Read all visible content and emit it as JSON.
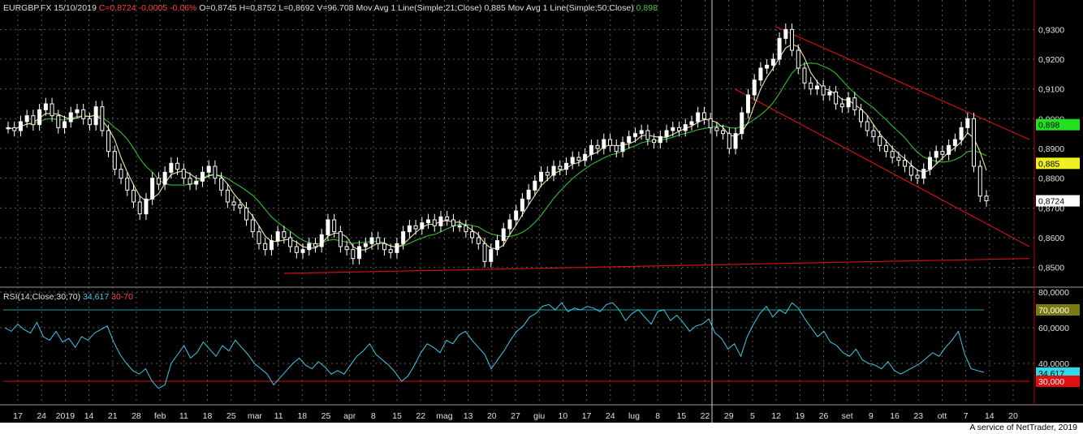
{
  "header": {
    "symbol_line": "EURGBP.FX 15/10/2019",
    "c": "C=0,8724",
    "chg": "-0,0005",
    "pct": "-0,06%",
    "ohlcv": "O=0,8745 H=0,8752 L=0,8692 V=96.708",
    "ma21_label": "Mov Avg 1 Line(Simple;21;Close) 0,885",
    "ma50_label": "Mov Avg 1 Line(Simple;50;Close)",
    "ma50_value": "0,898"
  },
  "rsi_header": {
    "label": "RSI(14;Close;30;70)",
    "value": "34,617",
    "bands": "30-70"
  },
  "credit": "A service of NetTrader, 2019",
  "colors": {
    "background": "#000000",
    "grid": "#5a5a5a",
    "candle": "#ffffff",
    "ma21": "#e8e8a0",
    "ma50": "#2fbf2f",
    "trend": "#d01010",
    "rsi": "#40c8e8",
    "rsi70": "#20a0a0",
    "rsi30": "#d01010"
  },
  "chart_data": [
    {
      "type": "candlestick",
      "title": "EURGBP.FX",
      "ylim": [
        0.845,
        0.935
      ],
      "y_ticks": [
        "0,8500",
        "0,8600",
        "0,8700",
        "0,8800",
        "0,8900",
        "0,9000",
        "0,9100",
        "0,9200",
        "0,9300"
      ],
      "x_ticks": [
        "17",
        "24",
        "2019",
        "14",
        "21",
        "28",
        "feb",
        "11",
        "18",
        "25",
        "mar",
        "11",
        "18",
        "25",
        "apr",
        "8",
        "15",
        "22",
        "mag",
        "13",
        "20",
        "27",
        "giu",
        "10",
        "17",
        "24",
        "lug",
        "8",
        "15",
        "22",
        "29",
        "5",
        "12",
        "19",
        "26",
        "set",
        "9",
        "16",
        "23",
        "ott",
        "7",
        "14",
        "20"
      ],
      "last_price_labels": [
        {
          "name": "MA50",
          "value": "0,898"
        },
        {
          "name": "MA21",
          "value": "0,885"
        },
        {
          "name": "Close",
          "value": "0,8724"
        }
      ],
      "close": [
        0.897,
        0.896,
        0.899,
        0.901,
        0.898,
        0.903,
        0.905,
        0.901,
        0.897,
        0.899,
        0.902,
        0.903,
        0.9,
        0.898,
        0.904,
        0.896,
        0.889,
        0.883,
        0.88,
        0.876,
        0.872,
        0.868,
        0.873,
        0.88,
        0.878,
        0.882,
        0.885,
        0.883,
        0.88,
        0.878,
        0.879,
        0.882,
        0.884,
        0.88,
        0.876,
        0.872,
        0.871,
        0.87,
        0.866,
        0.862,
        0.858,
        0.856,
        0.859,
        0.862,
        0.86,
        0.857,
        0.855,
        0.856,
        0.858,
        0.857,
        0.861,
        0.866,
        0.862,
        0.857,
        0.856,
        0.853,
        0.857,
        0.858,
        0.86,
        0.858,
        0.856,
        0.855,
        0.858,
        0.862,
        0.864,
        0.863,
        0.865,
        0.866,
        0.864,
        0.867,
        0.866,
        0.864,
        0.864,
        0.862,
        0.86,
        0.858,
        0.852,
        0.856,
        0.859,
        0.863,
        0.866,
        0.869,
        0.873,
        0.876,
        0.879,
        0.882,
        0.881,
        0.884,
        0.883,
        0.885,
        0.887,
        0.886,
        0.888,
        0.891,
        0.89,
        0.893,
        0.891,
        0.889,
        0.892,
        0.894,
        0.895,
        0.896,
        0.893,
        0.892,
        0.894,
        0.896,
        0.897,
        0.896,
        0.898,
        0.899,
        0.902,
        0.9,
        0.897,
        0.896,
        0.895,
        0.89,
        0.895,
        0.902,
        0.908,
        0.913,
        0.917,
        0.918,
        0.92,
        0.927,
        0.93,
        0.923,
        0.917,
        0.912,
        0.91,
        0.911,
        0.908,
        0.909,
        0.905,
        0.904,
        0.907,
        0.903,
        0.899,
        0.896,
        0.894,
        0.891,
        0.889,
        0.887,
        0.886,
        0.884,
        0.881,
        0.88,
        0.883,
        0.887,
        0.889,
        0.888,
        0.891,
        0.893,
        0.897,
        0.9,
        0.884,
        0.874,
        0.8724
      ],
      "ma21_end": 0.885,
      "ma50_end": 0.898,
      "trendlines": [
        {
          "from": [
            "2019-08-12",
            0.931
          ],
          "to": [
            "2019-10-25",
            0.893
          ]
        },
        {
          "from": [
            "2019-07-29",
            0.91
          ],
          "to": [
            "2019-10-25",
            0.857
          ]
        },
        {
          "from": [
            "2019-03-11",
            0.848
          ],
          "to": [
            "2019-10-25",
            0.853
          ]
        }
      ]
    },
    {
      "type": "line",
      "title": "RSI(14;Close;30;70)",
      "ylim": [
        20,
        80
      ],
      "y_ticks": [
        "40,0000",
        "60,0000",
        "80,0000"
      ],
      "level_labels": [
        "70,0000",
        "34,617",
        "30,000"
      ],
      "levels": [
        70,
        30
      ],
      "values": [
        60,
        58,
        62,
        59,
        57,
        63,
        55,
        53,
        58,
        52,
        54,
        49,
        55,
        53,
        57,
        59,
        61,
        52,
        45,
        40,
        36,
        34,
        37,
        30,
        26,
        28,
        40,
        45,
        50,
        43,
        46,
        52,
        48,
        44,
        50,
        47,
        53,
        49,
        45,
        40,
        37,
        34,
        28,
        32,
        36,
        40,
        43,
        39,
        37,
        41,
        38,
        34,
        36,
        34,
        39,
        44,
        47,
        51,
        45,
        42,
        39,
        35,
        30,
        33,
        39,
        46,
        51,
        49,
        46,
        53,
        51,
        56,
        58,
        53,
        49,
        45,
        37,
        42,
        47,
        53,
        58,
        61,
        66,
        68,
        72,
        73,
        70,
        74,
        69,
        71,
        70,
        72,
        71,
        69,
        73,
        74,
        70,
        64,
        68,
        70,
        66,
        62,
        69,
        70,
        64,
        67,
        63,
        58,
        61,
        62,
        65,
        57,
        54,
        48,
        51,
        44,
        55,
        62,
        68,
        72,
        66,
        70,
        68,
        74,
        71,
        65,
        60,
        55,
        58,
        52,
        50,
        46,
        44,
        48,
        42,
        40,
        39,
        37,
        41,
        36,
        34,
        36,
        38,
        40,
        43,
        46,
        44,
        49,
        53,
        58,
        45,
        37,
        36,
        35
      ]
    }
  ]
}
